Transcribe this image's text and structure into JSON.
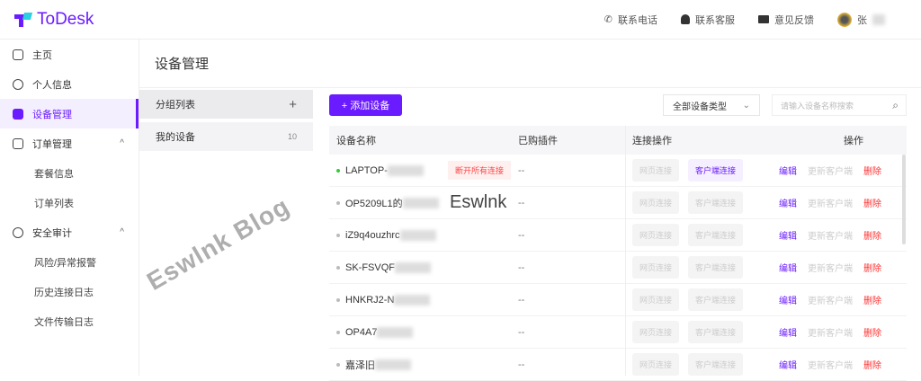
{
  "header": {
    "logo": "ToDesk",
    "links": [
      {
        "icon": "phone-icon",
        "label": "联系电话"
      },
      {
        "icon": "support-icon",
        "label": "联系客服"
      },
      {
        "icon": "feedback-icon",
        "label": "意见反馈"
      }
    ],
    "user": "张"
  },
  "sidebar": {
    "items": [
      {
        "label": "主页",
        "icon": "home-icon",
        "sub": false
      },
      {
        "label": "个人信息",
        "icon": "user-icon",
        "sub": false
      },
      {
        "label": "设备管理",
        "icon": "device-icon",
        "sub": false,
        "active": true
      },
      {
        "label": "订单管理",
        "icon": "order-icon",
        "sub": false,
        "expand": "^"
      },
      {
        "label": "套餐信息",
        "sub": true
      },
      {
        "label": "订单列表",
        "sub": true
      },
      {
        "label": "安全审计",
        "icon": "shield-icon",
        "sub": false,
        "expand": "^"
      },
      {
        "label": "风险/异常报警",
        "sub": true
      },
      {
        "label": "历史连接日志",
        "sub": true
      },
      {
        "label": "文件传输日志",
        "sub": true
      }
    ]
  },
  "main": {
    "title": "设备管理",
    "groups": {
      "header": "分组列表",
      "add": "+",
      "items": [
        {
          "label": "我的设备",
          "count": "10"
        }
      ]
    },
    "add_button": "+ 添加设备",
    "type_select": "全部设备类型",
    "search_placeholder": "请输入设备名称搜索",
    "columns": [
      "设备名称",
      "已购插件",
      "连接操作",
      "操作"
    ],
    "rows": [
      {
        "name": "LAPTOP-",
        "online": true,
        "tag": "断开所有连接",
        "plugin": "--",
        "web": "网页连接",
        "client": "客户端连接",
        "client_active": true
      },
      {
        "name": "OP5209L1的",
        "online": false,
        "plugin": "--",
        "web": "网页连接",
        "client": "客户端连接"
      },
      {
        "name": "iZ9q4ouzhrc",
        "online": false,
        "plugin": "--",
        "web": "网页连接",
        "client": "客户端连接"
      },
      {
        "name": "SK-FSVQF",
        "online": false,
        "plugin": "--",
        "web": "网页连接",
        "client": "客户端连接"
      },
      {
        "name": "HNKRJ2-N",
        "online": false,
        "plugin": "--",
        "web": "网页连接",
        "client": "客户端连接"
      },
      {
        "name": "OP4A7",
        "online": false,
        "plugin": "--",
        "web": "网页连接",
        "client": "客户端连接"
      },
      {
        "name": "嘉泽旧",
        "online": false,
        "plugin": "--",
        "web": "网页连接",
        "client": "客户端连接"
      }
    ],
    "actions": {
      "edit": "编辑",
      "update": "更新客户端",
      "delete": "删除"
    }
  },
  "watermarks": [
    "Eswlnk Blog",
    "Eswlnk"
  ],
  "colors": {
    "accent": "#6a1bff",
    "danger": "#ff3333",
    "online": "#33cc33"
  }
}
